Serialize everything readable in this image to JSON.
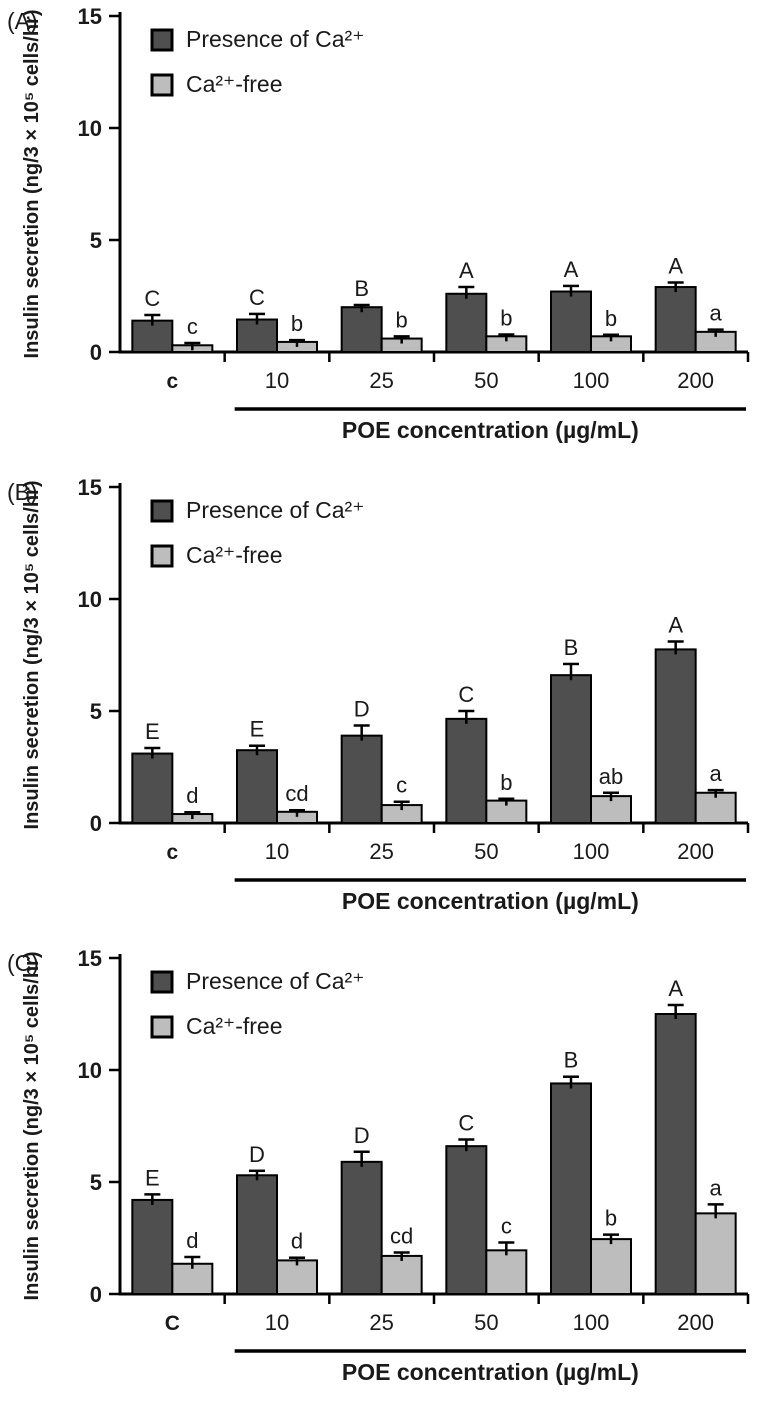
{
  "figure": {
    "background": "#ffffff",
    "text_color": "#1a1a1a",
    "axis_color": "#000000"
  },
  "chart_data": [
    {
      "type": "bar",
      "panel_label": "(A)",
      "title": "",
      "ylabel": "Insulin secretion (ng/3 × 10⁵ cells/hr)",
      "xlabel": "POE concentration (µg/mL)",
      "ylim": [
        0,
        15
      ],
      "yticks": [
        0,
        5,
        10,
        15
      ],
      "grid": false,
      "legend_position": "top-left",
      "categories": [
        "c",
        "10",
        "25",
        "50",
        "100",
        "200"
      ],
      "xlabel_underline_span": [
        "10",
        "200"
      ],
      "series": [
        {
          "name": "Presence of Ca²⁺",
          "color": "#4f4f4f",
          "values": [
            1.4,
            1.45,
            2.0,
            2.6,
            2.7,
            2.9
          ],
          "errors": [
            0.25,
            0.25,
            0.1,
            0.3,
            0.25,
            0.2
          ],
          "sig_letters": [
            "C",
            "C",
            "B",
            "A",
            "A",
            "A"
          ]
        },
        {
          "name": "Ca²⁺-free",
          "color": "#bdbdbd",
          "values": [
            0.3,
            0.45,
            0.6,
            0.7,
            0.7,
            0.9
          ],
          "errors": [
            0.1,
            0.08,
            0.1,
            0.08,
            0.07,
            0.1
          ],
          "sig_letters": [
            "c",
            "b",
            "b",
            "b",
            "b",
            "a"
          ]
        }
      ]
    },
    {
      "type": "bar",
      "panel_label": "(B)",
      "title": "",
      "ylabel": "Insulin secretion (ng/3 × 10⁵ cells/hr)",
      "xlabel": "POE concentration (µg/mL)",
      "ylim": [
        0,
        15
      ],
      "yticks": [
        0,
        5,
        10,
        15
      ],
      "grid": false,
      "legend_position": "top-left",
      "categories": [
        "c",
        "10",
        "25",
        "50",
        "100",
        "200"
      ],
      "xlabel_underline_span": [
        "10",
        "200"
      ],
      "series": [
        {
          "name": "Presence of Ca²⁺",
          "color": "#4f4f4f",
          "values": [
            3.1,
            3.25,
            3.9,
            4.65,
            6.6,
            7.75
          ],
          "errors": [
            0.25,
            0.2,
            0.45,
            0.35,
            0.5,
            0.35
          ],
          "sig_letters": [
            "E",
            "E",
            "D",
            "C",
            "B",
            "A"
          ]
        },
        {
          "name": "Ca²⁺-free",
          "color": "#bdbdbd",
          "values": [
            0.4,
            0.5,
            0.8,
            1.0,
            1.2,
            1.35
          ],
          "errors": [
            0.08,
            0.07,
            0.15,
            0.08,
            0.15,
            0.12
          ],
          "sig_letters": [
            "d",
            "cd",
            "c",
            "b",
            "ab",
            "a"
          ]
        }
      ]
    },
    {
      "type": "bar",
      "panel_label": "(C)",
      "title": "",
      "ylabel": "Insulin secretion (ng/3 × 10⁵ cells/hr)",
      "xlabel": "POE concentration (µg/mL)",
      "ylim": [
        0,
        15
      ],
      "yticks": [
        0,
        5,
        10,
        15
      ],
      "grid": false,
      "legend_position": "top-left",
      "categories": [
        "C",
        "10",
        "25",
        "50",
        "100",
        "200"
      ],
      "xlabel_underline_span": [
        "10",
        "200"
      ],
      "series": [
        {
          "name": "Presence of Ca²⁺",
          "color": "#4f4f4f",
          "values": [
            4.2,
            5.3,
            5.9,
            6.6,
            9.4,
            12.5
          ],
          "errors": [
            0.25,
            0.2,
            0.45,
            0.3,
            0.3,
            0.4
          ],
          "sig_letters": [
            "E",
            "D",
            "D",
            "C",
            "B",
            "A"
          ]
        },
        {
          "name": "Ca²⁺-free",
          "color": "#bdbdbd",
          "values": [
            1.35,
            1.5,
            1.7,
            1.95,
            2.45,
            3.6
          ],
          "errors": [
            0.3,
            0.12,
            0.15,
            0.35,
            0.2,
            0.4
          ],
          "sig_letters": [
            "d",
            "d",
            "cd",
            "c",
            "b",
            "a"
          ]
        }
      ]
    }
  ]
}
